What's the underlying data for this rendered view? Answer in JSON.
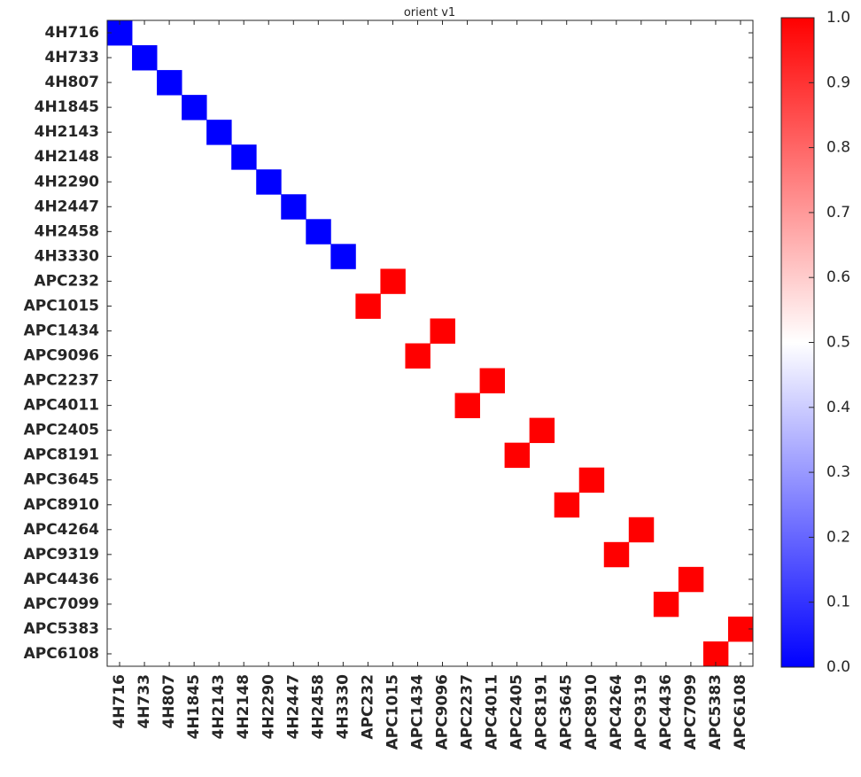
{
  "chart_data": {
    "type": "heatmap",
    "title": "orient v1",
    "labels": [
      "4H716",
      "4H733",
      "4H807",
      "4H1845",
      "4H2143",
      "4H2148",
      "4H2290",
      "4H2447",
      "4H2458",
      "4H3330",
      "APC232",
      "APC1015",
      "APC1434",
      "APC9096",
      "APC2237",
      "APC4011",
      "APC2405",
      "APC8191",
      "APC3645",
      "APC8910",
      "APC4264",
      "APC9319",
      "APC4436",
      "APC7099",
      "APC5383",
      "APC6108"
    ],
    "default_value": 0.5,
    "cells": [
      {
        "row": "4H716",
        "col": "4H716",
        "value": 0.0
      },
      {
        "row": "4H733",
        "col": "4H733",
        "value": 0.0
      },
      {
        "row": "4H807",
        "col": "4H807",
        "value": 0.0
      },
      {
        "row": "4H1845",
        "col": "4H1845",
        "value": 0.0
      },
      {
        "row": "4H2143",
        "col": "4H2143",
        "value": 0.0
      },
      {
        "row": "4H2148",
        "col": "4H2148",
        "value": 0.0
      },
      {
        "row": "4H2290",
        "col": "4H2290",
        "value": 0.0
      },
      {
        "row": "4H2447",
        "col": "4H2447",
        "value": 0.0
      },
      {
        "row": "4H2458",
        "col": "4H2458",
        "value": 0.0
      },
      {
        "row": "4H3330",
        "col": "4H3330",
        "value": 0.0
      },
      {
        "row": "APC232",
        "col": "APC1015",
        "value": 1.0
      },
      {
        "row": "APC1015",
        "col": "APC232",
        "value": 1.0
      },
      {
        "row": "APC1434",
        "col": "APC9096",
        "value": 1.0
      },
      {
        "row": "APC9096",
        "col": "APC1434",
        "value": 1.0
      },
      {
        "row": "APC2237",
        "col": "APC4011",
        "value": 1.0
      },
      {
        "row": "APC4011",
        "col": "APC2237",
        "value": 1.0
      },
      {
        "row": "APC2405",
        "col": "APC8191",
        "value": 1.0
      },
      {
        "row": "APC8191",
        "col": "APC2405",
        "value": 1.0
      },
      {
        "row": "APC3645",
        "col": "APC8910",
        "value": 1.0
      },
      {
        "row": "APC8910",
        "col": "APC3645",
        "value": 1.0
      },
      {
        "row": "APC4264",
        "col": "APC9319",
        "value": 1.0
      },
      {
        "row": "APC9319",
        "col": "APC4264",
        "value": 1.0
      },
      {
        "row": "APC4436",
        "col": "APC7099",
        "value": 1.0
      },
      {
        "row": "APC7099",
        "col": "APC4436",
        "value": 1.0
      },
      {
        "row": "APC5383",
        "col": "APC6108",
        "value": 1.0
      },
      {
        "row": "APC6108",
        "col": "APC5383",
        "value": 1.0
      }
    ],
    "colorbar": {
      "range": [
        0.0,
        1.0
      ],
      "ticks": [
        "0.0",
        "0.1",
        "0.2",
        "0.3",
        "0.4",
        "0.5",
        "0.6",
        "0.7",
        "0.8",
        "0.9",
        "1.0"
      ],
      "colormap": "bwr",
      "low_color": "#0000ff",
      "mid_color": "#ffffff",
      "high_color": "#ff0000"
    },
    "grid": false
  }
}
